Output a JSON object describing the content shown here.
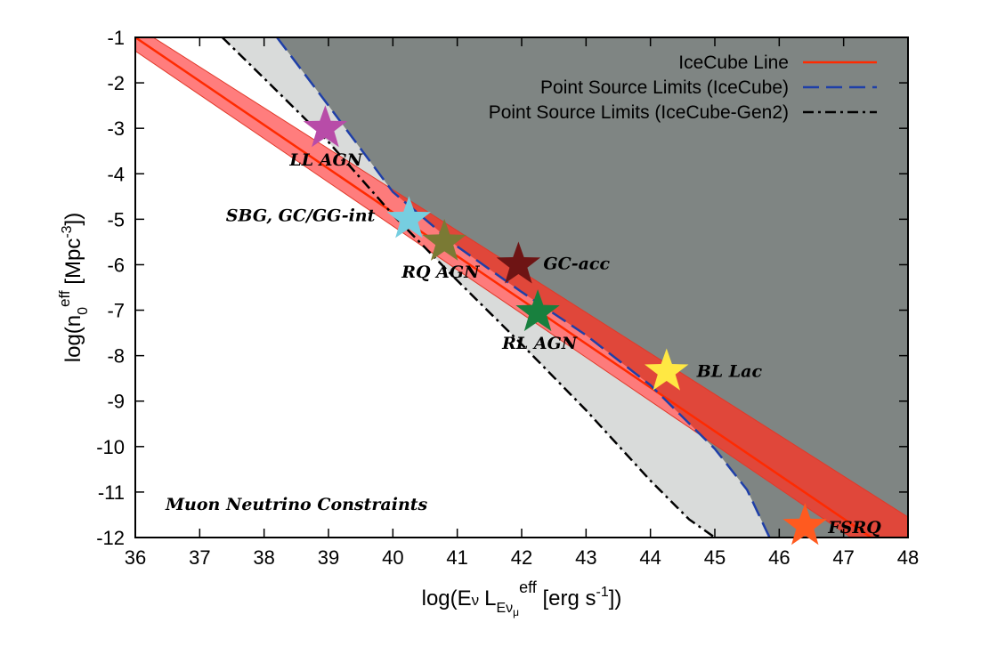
{
  "chart_data": {
    "type": "line",
    "xlabel": "log(E_ν L_Eνμ^eff [erg s^-1])",
    "ylabel": "log(n0^eff [Mpc^-3])",
    "xlim": [
      36,
      48
    ],
    "ylim": [
      -12,
      -1
    ],
    "x_ticks": [
      "36",
      "37",
      "38",
      "39",
      "40",
      "41",
      "42",
      "43",
      "44",
      "45",
      "46",
      "47",
      "48"
    ],
    "y_ticks": [
      "-1",
      "-2",
      "-3",
      "-4",
      "-5",
      "-6",
      "-7",
      "-8",
      "-9",
      "-10",
      "-11",
      "-12"
    ],
    "grid": false,
    "legend_position": "top-right",
    "annotation": "Muon Neutrino Constraints",
    "colors": {
      "excluded_region": "#7f8583",
      "gen2_region": "#d9dbda",
      "band": "#ff7676",
      "band_dark": "#e0473a",
      "line": "#ff2a00",
      "limit_ic": "#1f3fa8",
      "limit_gen2": "#000000"
    },
    "series": [
      {
        "name": "IceCube Line",
        "style": "solid",
        "x": [
          36,
          48
        ],
        "y": [
          -1.0,
          -12.55
        ],
        "band_upper": [
          -0.75,
          -11.55
        ],
        "band_lower": [
          -1.3,
          -12.85
        ]
      },
      {
        "name": "Point Source Limits (IceCube)",
        "style": "dashed",
        "x": [
          38.2,
          39.0,
          40.0,
          41.0,
          42.0,
          43.0,
          44.0,
          45.0,
          45.5,
          45.85
        ],
        "y": [
          -1.0,
          -2.5,
          -4.4,
          -5.6,
          -6.6,
          -7.55,
          -8.65,
          -10.05,
          -10.95,
          -12.0
        ]
      },
      {
        "name": "Point Source Limits (IceCube-Gen2)",
        "style": "dash-dot",
        "x": [
          37.35,
          38.0,
          39.0,
          40.0,
          41.0,
          42.0,
          43.0,
          44.0,
          44.6,
          45.0
        ],
        "y": [
          -1.0,
          -1.9,
          -3.3,
          -4.9,
          -6.35,
          -7.75,
          -9.2,
          -10.75,
          -11.6,
          -12.0
        ]
      }
    ],
    "sources": [
      {
        "label": "LL AGN",
        "x": 38.95,
        "y": -3.0,
        "color": "#b84ca8"
      },
      {
        "label": "SBG, GC/GG-int",
        "x": 40.25,
        "y": -5.0,
        "color": "#76cee0"
      },
      {
        "label": "RQ AGN",
        "x": 40.8,
        "y": -5.5,
        "color": "#7a7a34"
      },
      {
        "label": "GC-acc",
        "x": 41.95,
        "y": -6.0,
        "color": "#6e1414"
      },
      {
        "label": "RL AGN",
        "x": 42.25,
        "y": -7.05,
        "color": "#18803e"
      },
      {
        "label": "BL Lac",
        "x": 44.25,
        "y": -8.35,
        "color": "#ffe843"
      },
      {
        "label": "FSRQ",
        "x": 46.4,
        "y": -11.75,
        "color": "#ff5a1f"
      }
    ]
  }
}
